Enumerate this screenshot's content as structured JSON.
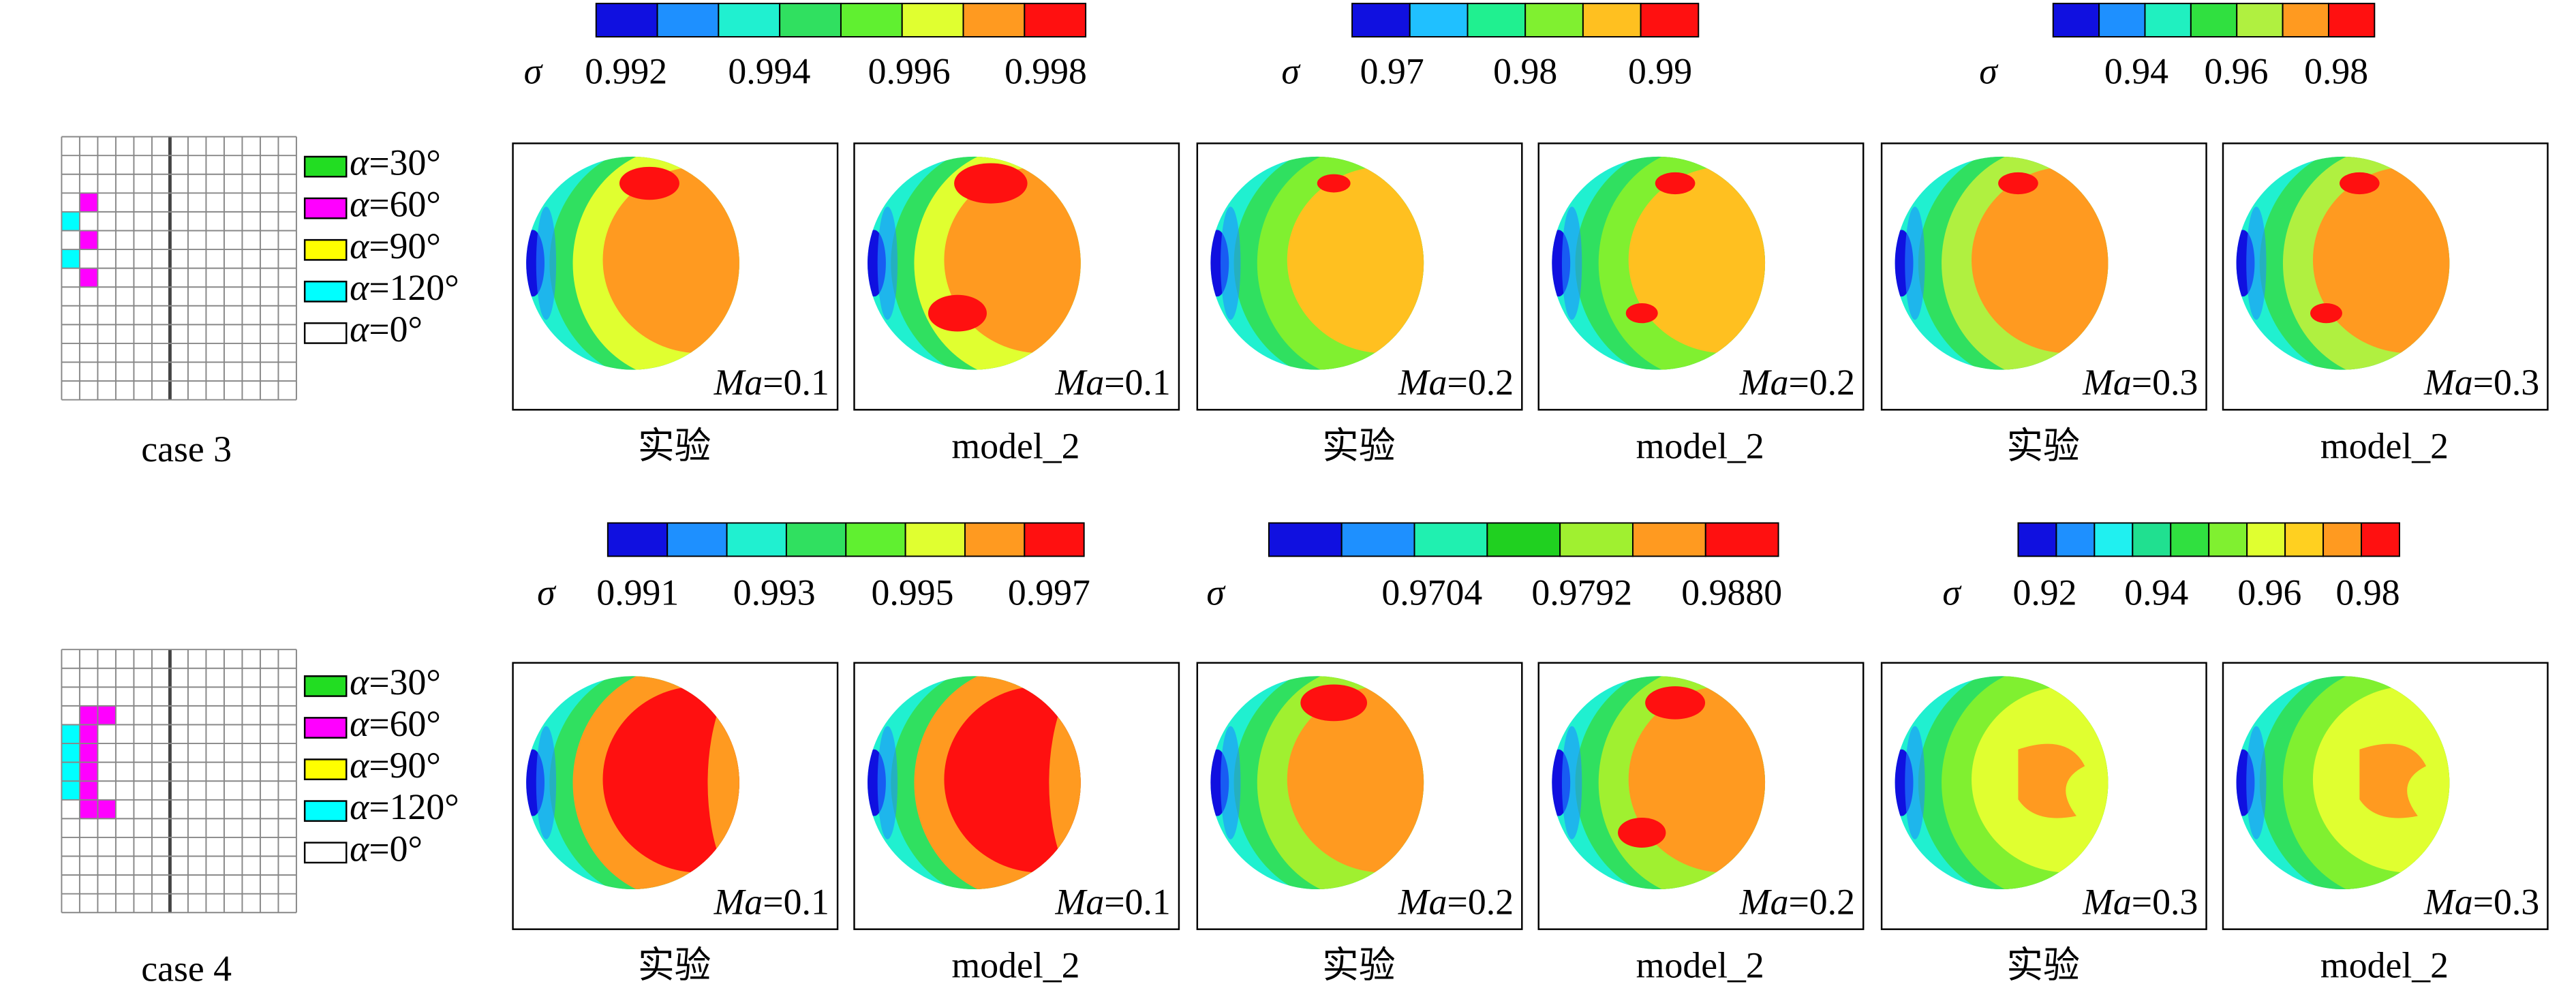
{
  "symbols": {
    "sigma": "σ",
    "alpha": "α",
    "ma": "Ma"
  },
  "rows": [
    {
      "case": "case 3",
      "legend": [
        {
          "label": "=30°",
          "color": "#22dd22"
        },
        {
          "label": "=60°",
          "color": "#ff00ff"
        },
        {
          "label": "=90°",
          "color": "#ffff00"
        },
        {
          "label": "=120°",
          "color": "#00ffff"
        },
        {
          "label": "=0°",
          "color": "#ffffff"
        }
      ],
      "groups": [
        {
          "colorbar": {
            "colors": [
              "#1010e0",
              "#1e90ff",
              "#20f0d0",
              "#30e060",
              "#60f030",
              "#e0ff30",
              "#ff9a20",
              "#ff1010"
            ],
            "ticks": [
              "0.992",
              "0.994",
              "0.996",
              "0.998"
            ]
          },
          "panels": [
            {
              "mach": "=0.1",
              "caption": "实验"
            },
            {
              "mach": "=0.1",
              "caption": "model_2"
            }
          ]
        },
        {
          "colorbar": {
            "colors": [
              "#1010e0",
              "#20c0ff",
              "#20f090",
              "#80f030",
              "#ffc020",
              "#ff1010"
            ],
            "ticks": [
              "0.97",
              "0.98",
              "0.99"
            ]
          },
          "panels": [
            {
              "mach": "=0.2",
              "caption": "实验"
            },
            {
              "mach": "=0.2",
              "caption": "model_2"
            }
          ]
        },
        {
          "colorbar": {
            "colors": [
              "#1010e0",
              "#1e90ff",
              "#20f0c0",
              "#30e040",
              "#b0f040",
              "#ff9a20",
              "#ff1010"
            ],
            "ticks": [
              "0.94",
              "0.96",
              "0.98"
            ]
          },
          "panels": [
            {
              "mach": "=0.3",
              "caption": "实验"
            },
            {
              "mach": "=0.3",
              "caption": "model_2"
            }
          ]
        }
      ]
    },
    {
      "case": "case 4",
      "legend": [
        {
          "label": "=30°",
          "color": "#22dd22"
        },
        {
          "label": "=60°",
          "color": "#ff00ff"
        },
        {
          "label": "=90°",
          "color": "#ffff00"
        },
        {
          "label": "=120°",
          "color": "#00ffff"
        },
        {
          "label": "=0°",
          "color": "#ffffff"
        }
      ],
      "groups": [
        {
          "colorbar": {
            "colors": [
              "#1010e0",
              "#1e90ff",
              "#20f0d0",
              "#30e060",
              "#60f030",
              "#e0ff30",
              "#ff9a20",
              "#ff1010"
            ],
            "ticks": [
              "0.991",
              "0.993",
              "0.995",
              "0.997"
            ]
          },
          "panels": [
            {
              "mach": "=0.1",
              "caption": "实验"
            },
            {
              "mach": "=0.1",
              "caption": "model_2"
            }
          ]
        },
        {
          "colorbar": {
            "colors": [
              "#1010e0",
              "#1e90ff",
              "#20f0b0",
              "#20d020",
              "#a0f030",
              "#ff9a20",
              "#ff1010"
            ],
            "ticks": [
              "0.9704",
              "0.9792",
              "0.9880"
            ]
          },
          "panels": [
            {
              "mach": "=0.2",
              "caption": "实验"
            },
            {
              "mach": "=0.2",
              "caption": "model_2"
            }
          ]
        },
        {
          "colorbar": {
            "colors": [
              "#1010e0",
              "#1e90ff",
              "#20f0f0",
              "#20e090",
              "#30e040",
              "#80f030",
              "#e0ff30",
              "#ffd020",
              "#ff9a20",
              "#ff1010"
            ],
            "ticks": [
              "0.92",
              "0.94",
              "0.96",
              "0.98"
            ]
          },
          "panels": [
            {
              "mach": "=0.3",
              "caption": "实验"
            },
            {
              "mach": "=0.3",
              "caption": "model_2"
            }
          ]
        }
      ]
    }
  ]
}
